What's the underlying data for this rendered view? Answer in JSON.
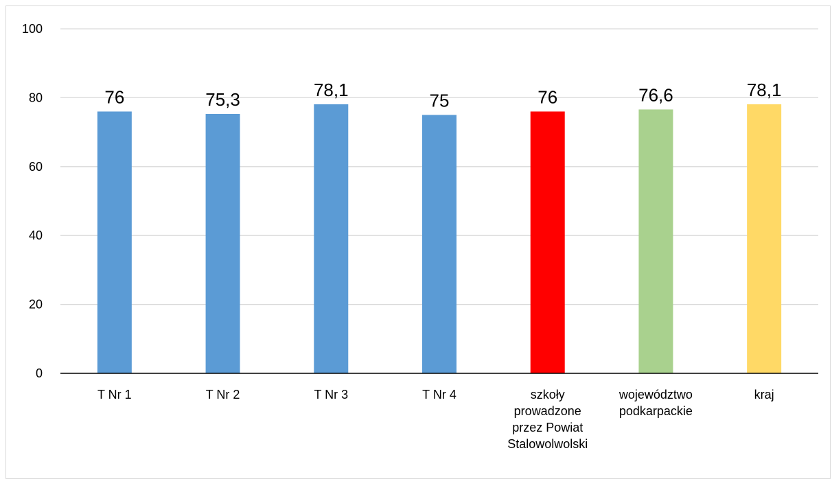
{
  "chart_data": {
    "type": "bar",
    "categories": [
      [
        "T Nr 1"
      ],
      [
        "T Nr 2"
      ],
      [
        "T Nr 3"
      ],
      [
        "T Nr 4"
      ],
      [
        "szkoły",
        "prowadzone",
        "przez Powiat",
        "Stalowolwolski"
      ],
      [
        "województwo",
        "podkarpackie"
      ],
      [
        "kraj"
      ]
    ],
    "values": [
      76,
      75.3,
      78.1,
      75,
      76,
      76.6,
      78.1
    ],
    "data_labels": [
      "76",
      "75,3",
      "78,1",
      "75",
      "76",
      "76,6",
      "78,1"
    ],
    "bar_colors": [
      "#5b9bd5",
      "#5b9bd5",
      "#5b9bd5",
      "#5b9bd5",
      "#ff0000",
      "#a9d18e",
      "#ffd966"
    ],
    "ylim": [
      0,
      100
    ],
    "y_ticks": [
      0,
      20,
      40,
      60,
      80,
      100
    ],
    "grid": true,
    "gridline_color": "#d9d9d9",
    "axis_color": "#000000"
  }
}
